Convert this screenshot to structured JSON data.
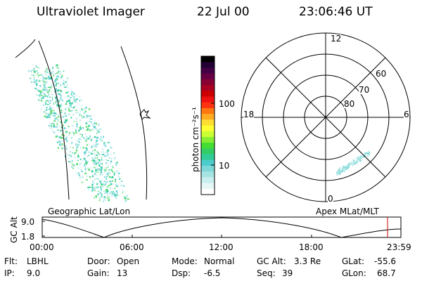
{
  "header": {
    "instrument": "Ultraviolet Imager",
    "date": "22 Jul 00",
    "time": "23:06:46 UT"
  },
  "colorbar": {
    "label": "photon cm⁻²s⁻¹",
    "tick_labels": [
      "100",
      "10"
    ],
    "tick_values": [
      100,
      10
    ],
    "colors": [
      "#ffffff",
      "#e6f7f7",
      "#c9eeee",
      "#a6e3e3",
      "#7fd8d8",
      "#4ccccc",
      "#33cc99",
      "#33cc66",
      "#44dd33",
      "#88ee33",
      "#ccff33",
      "#ffff33",
      "#ffdd33",
      "#ffaa22",
      "#ff7711",
      "#ff3311",
      "#ee1111",
      "#cc0000",
      "#aa0022",
      "#880033",
      "#660044",
      "#440044",
      "#220033",
      "#000000"
    ]
  },
  "left_panel": {
    "label": "Geographic Lat/Lon",
    "aurora_color": "#33cc99"
  },
  "right_panel": {
    "label": "Apex MLat/MLT",
    "mlt_labels": {
      "top": "12",
      "left": "18",
      "right": "6",
      "bottom": "0"
    },
    "mlat_labels": [
      "60",
      "70",
      "80"
    ],
    "aurora_color": "#a6e3e3"
  },
  "alt_plot": {
    "ylabel": "GC Alt",
    "y_ticks": [
      "9.0",
      "1.8"
    ],
    "x_ticks": [
      "00:00",
      "06:00",
      "12:00",
      "18:00",
      "23:59"
    ],
    "current_time_marker_color": "#cc0000"
  },
  "info": {
    "row1": [
      {
        "label": "Flt:",
        "value": "LBHL"
      },
      {
        "label": "Door:",
        "value": "Open"
      },
      {
        "label": "Mode:",
        "value": "Normal"
      },
      {
        "label": "GC Alt:",
        "value": "3.3 Re"
      },
      {
        "label": "GLat:",
        "value": "-55.6"
      }
    ],
    "row2": [
      {
        "label": "IP:",
        "value": "9.0"
      },
      {
        "label": "Gain:",
        "value": "13"
      },
      {
        "label": "Dsp:",
        "value": "-6.5"
      },
      {
        "label": "Seq:",
        "value": "39"
      },
      {
        "label": "GLon:",
        "value": "68.7"
      }
    ]
  }
}
